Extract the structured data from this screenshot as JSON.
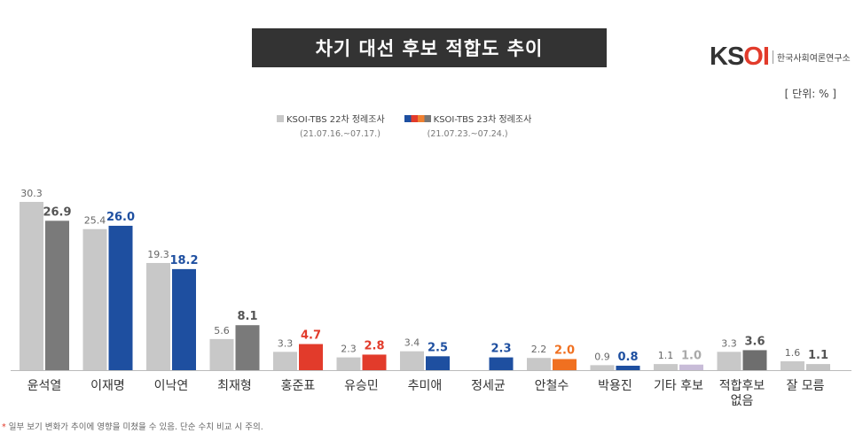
{
  "title": "차기 대선 후보 적합도 추이",
  "logo": {
    "mark": "KSOI",
    "subtitle": "한국사회여론연구소"
  },
  "unit": "[ 단위: % ]",
  "legend": [
    {
      "name": "KSOI-TBS 22차 정례조사",
      "date": "(21.07.16.~07.17.)"
    },
    {
      "name": "KSOI-TBS 23차 정례조사",
      "date": "(21.07.23.~07.24.)"
    }
  ],
  "footnote": {
    "star": "*",
    "text": "일부 보기 변화가 추이에 영향을 미쳤을 수 있음. 단순 수치 비교 시 주의."
  },
  "chart_data": {
    "type": "bar",
    "categories": [
      "윤석열",
      "이재명",
      "이낙연",
      "최재형",
      "홍준표",
      "유승민",
      "추미애",
      "정세균",
      "안철수",
      "박용진",
      "기타 후보",
      "적합후보\n없음",
      "잘 모름"
    ],
    "series": [
      {
        "name": "KSOI-TBS 22차 정례조사",
        "values": [
          30.3,
          25.4,
          19.3,
          5.6,
          3.3,
          2.3,
          3.4,
          null,
          2.2,
          0.9,
          1.1,
          3.3,
          1.6
        ]
      },
      {
        "name": "KSOI-TBS 23차 정례조사",
        "values": [
          26.9,
          26.0,
          18.2,
          8.1,
          4.7,
          2.8,
          2.5,
          2.3,
          2.0,
          0.8,
          1.0,
          3.6,
          1.1
        ]
      }
    ],
    "series2_colors": [
      "#7a7a7a",
      "#1e4fa0",
      "#1e4fa0",
      "#7a7a7a",
      "#e23b2b",
      "#e23b2b",
      "#1e4fa0",
      "#1e4fa0",
      "#f07020",
      "#1e4fa0",
      "#c8bcd8",
      "#6e6e6e",
      "#c4c4c4"
    ],
    "series2_label_colors": [
      "#555555",
      "#1e4fa0",
      "#1e4fa0",
      "#555555",
      "#e23b2b",
      "#e23b2b",
      "#1e4fa0",
      "#1e4fa0",
      "#f07020",
      "#1e4fa0",
      "#aaaaaa",
      "#555555",
      "#555555"
    ],
    "series1_color": "#c8c8c8",
    "ylim": [
      0,
      31
    ],
    "grid": false,
    "legend_position": "top-center"
  }
}
